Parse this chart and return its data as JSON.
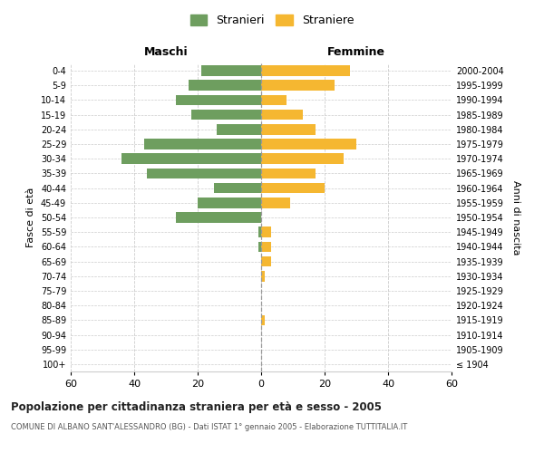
{
  "age_groups": [
    "100+",
    "95-99",
    "90-94",
    "85-89",
    "80-84",
    "75-79",
    "70-74",
    "65-69",
    "60-64",
    "55-59",
    "50-54",
    "45-49",
    "40-44",
    "35-39",
    "30-34",
    "25-29",
    "20-24",
    "15-19",
    "10-14",
    "5-9",
    "0-4"
  ],
  "birth_years": [
    "≤ 1904",
    "1905-1909",
    "1910-1914",
    "1915-1919",
    "1920-1924",
    "1925-1929",
    "1930-1934",
    "1935-1939",
    "1940-1944",
    "1945-1949",
    "1950-1954",
    "1955-1959",
    "1960-1964",
    "1965-1969",
    "1970-1974",
    "1975-1979",
    "1980-1984",
    "1985-1989",
    "1990-1994",
    "1995-1999",
    "2000-2004"
  ],
  "males": [
    0,
    0,
    0,
    0,
    0,
    0,
    0,
    0,
    1,
    1,
    27,
    20,
    15,
    36,
    44,
    37,
    14,
    22,
    27,
    23,
    19
  ],
  "females": [
    0,
    0,
    0,
    1,
    0,
    0,
    1,
    3,
    3,
    3,
    0,
    9,
    20,
    17,
    26,
    30,
    17,
    13,
    8,
    23,
    28
  ],
  "male_color": "#6e9e5f",
  "female_color": "#f5b731",
  "background_color": "#ffffff",
  "grid_color": "#cccccc",
  "xlim": 60,
  "title": "Popolazione per cittadinanza straniera per età e sesso - 2005",
  "subtitle": "COMUNE DI ALBANO SANT'ALESSANDRO (BG) - Dati ISTAT 1° gennaio 2005 - Elaborazione TUTTITALIA.IT",
  "xlabel_left": "Maschi",
  "xlabel_right": "Femmine",
  "ylabel_left": "Fasce di età",
  "ylabel_right": "Anni di nascita",
  "legend_male": "Stranieri",
  "legend_female": "Straniere"
}
